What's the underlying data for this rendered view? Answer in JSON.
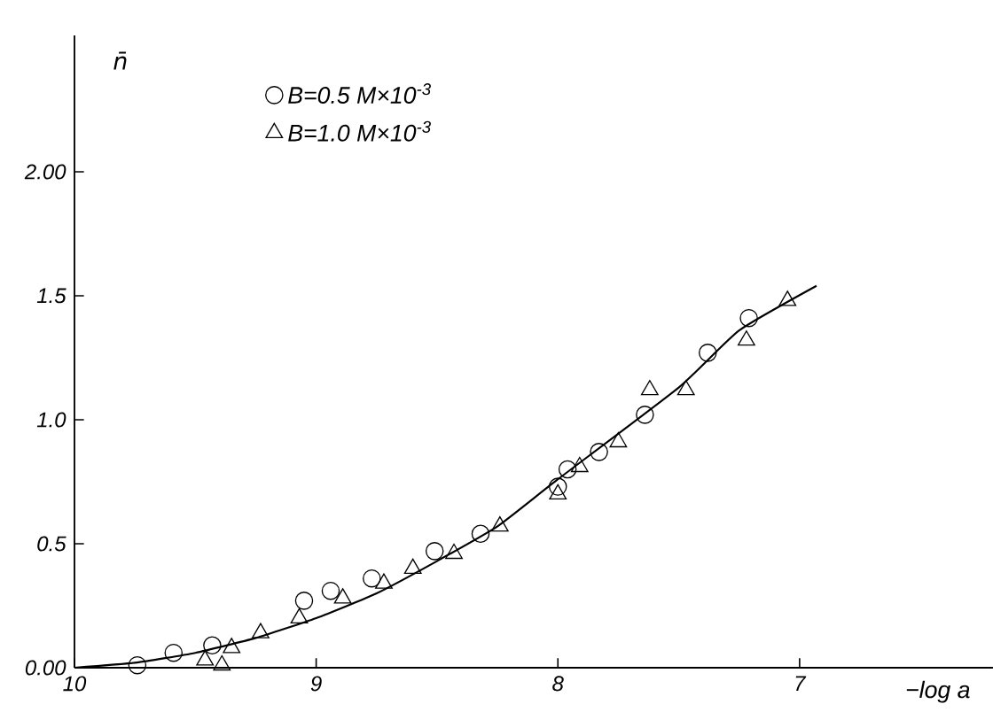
{
  "chart_data": {
    "type": "scatter",
    "xlabel": "−log a",
    "ylabel": "n̄",
    "xlim": [
      10,
      6.2
    ],
    "ylim": [
      0,
      2.55
    ],
    "xticks": [
      10,
      9,
      8,
      7
    ],
    "yticks": [
      {
        "value": 0,
        "label": "0.00"
      },
      {
        "value": 0.5,
        "label": "0.5"
      },
      {
        "value": 1,
        "label": "1.0"
      },
      {
        "value": 1.5,
        "label": "1.5"
      },
      {
        "value": 2,
        "label": "2.00"
      }
    ],
    "legend": "top left",
    "series": [
      {
        "name": "B=0.5 M×10$^{-3}$",
        "marker": "circle",
        "color": "#000000",
        "x": [
          9.74,
          9.59,
          9.43,
          9.05,
          8.94,
          8.77,
          8.51,
          8.32,
          8.0,
          7.96,
          7.83,
          7.64,
          7.38,
          7.21
        ],
        "values": [
          0.01,
          0.06,
          0.09,
          0.27,
          0.31,
          0.36,
          0.47,
          0.54,
          0.73,
          0.8,
          0.87,
          1.02,
          1.27,
          1.41
        ]
      },
      {
        "name": "B=1.0 M×10$^{-3}$",
        "marker": "triangle",
        "color": "#000000",
        "x": [
          9.46,
          9.39,
          9.35,
          9.23,
          9.07,
          8.89,
          8.72,
          8.6,
          8.43,
          8.24,
          8.0,
          7.91,
          7.75,
          7.62,
          7.47,
          7.22,
          7.05
        ],
        "values": [
          0.03,
          0.01,
          0.08,
          0.14,
          0.2,
          0.28,
          0.34,
          0.4,
          0.46,
          0.57,
          0.7,
          0.81,
          0.91,
          1.12,
          1.12,
          1.32,
          1.48
        ]
      },
      {
        "type": "line",
        "marker": "none",
        "line_style": "solid",
        "color": "#000000",
        "x": [
          10,
          9.75,
          9.5,
          9.25,
          9,
          8.75,
          8.5,
          8.25,
          8,
          7.5,
          7.25,
          6.93
        ],
        "values": [
          0,
          0.02,
          0.06,
          0.12,
          0.2,
          0.3,
          0.43,
          0.57,
          0.76,
          1.13,
          1.36,
          1.54
        ]
      }
    ]
  }
}
